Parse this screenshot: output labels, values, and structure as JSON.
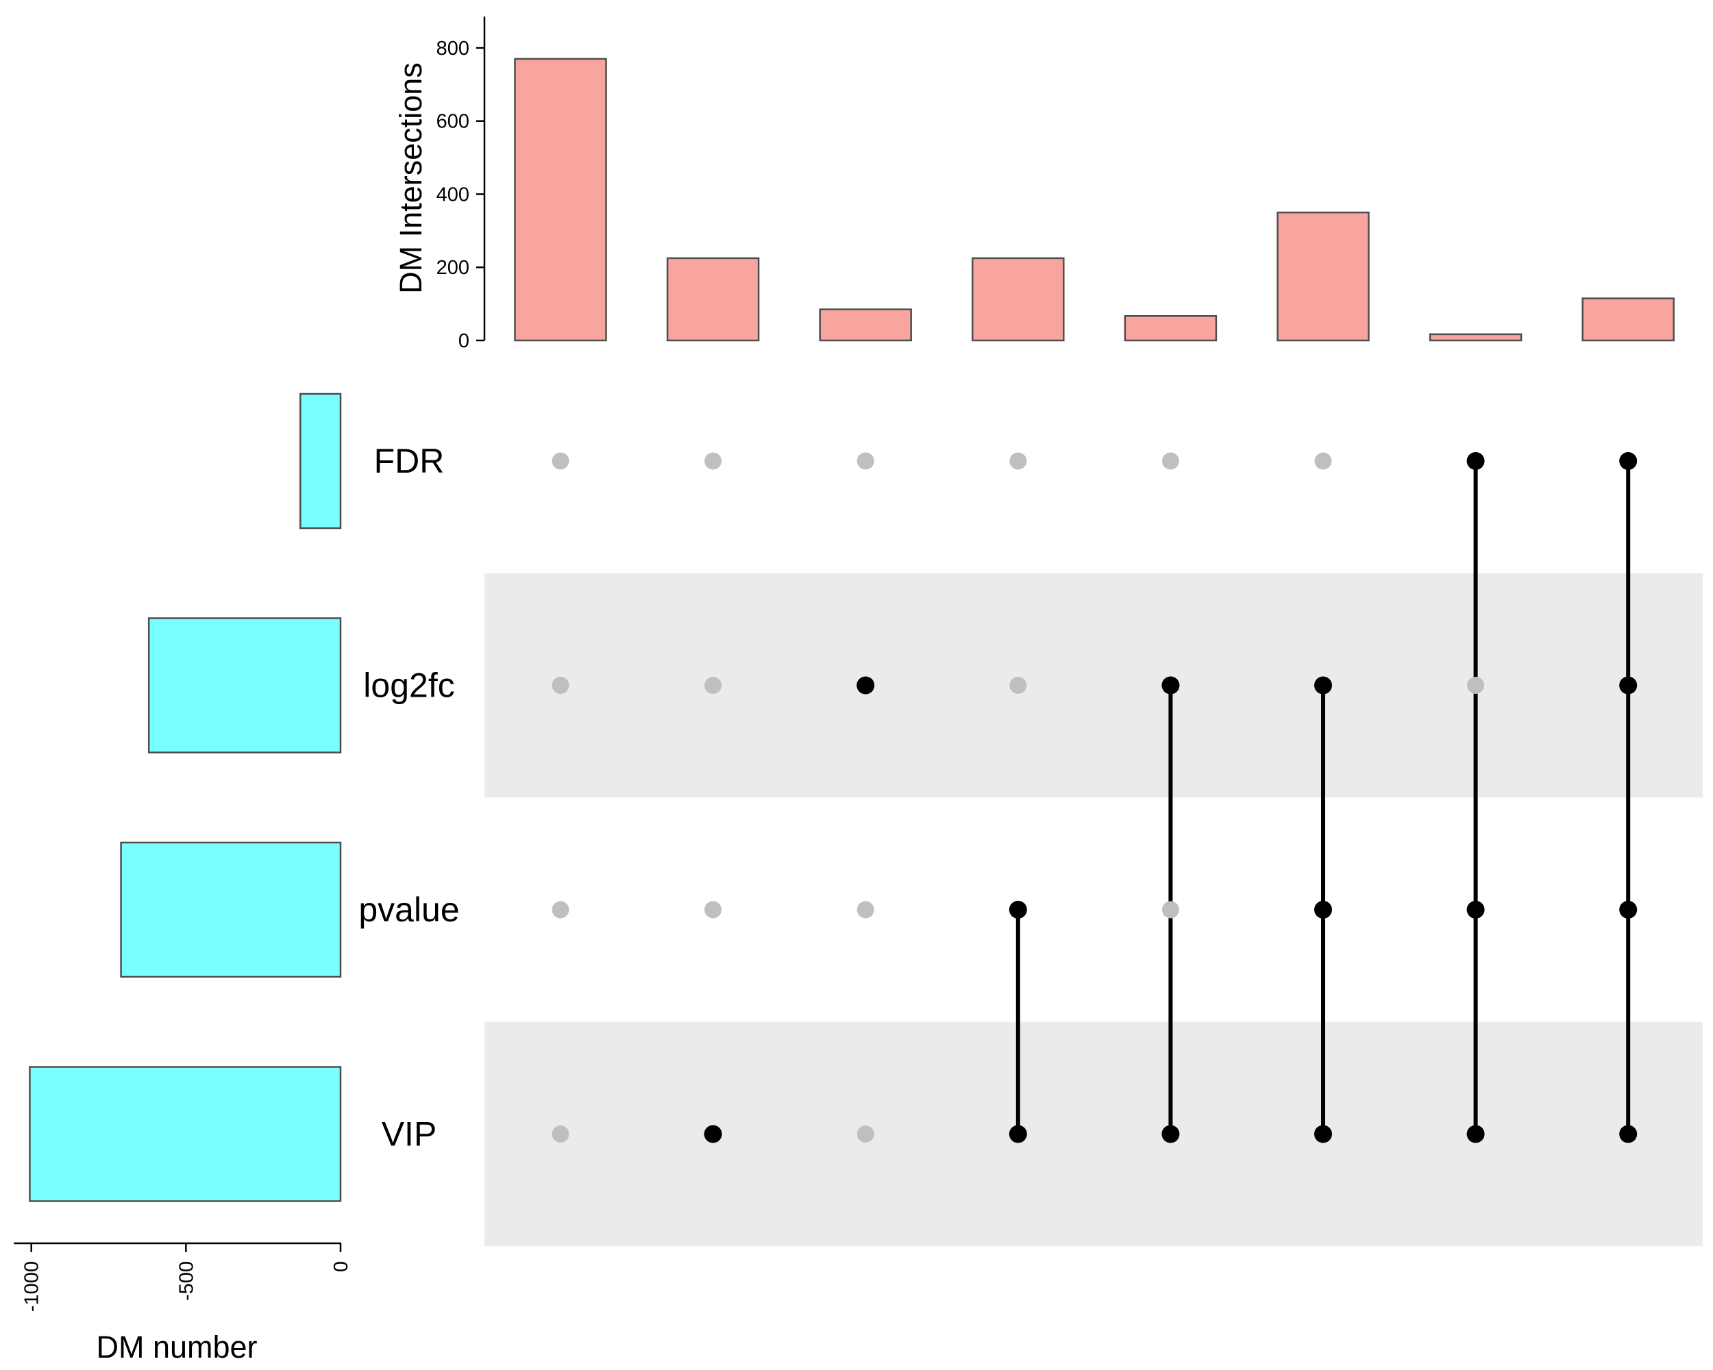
{
  "chart_data": {
    "type": "bar",
    "intersection_chart": {
      "ylabel": "DM Intersections",
      "ylim": [
        0,
        880
      ],
      "yticks": [
        0,
        200,
        400,
        600,
        800
      ],
      "bar_color": "#F8A5A0",
      "bar_outline": "#4D4D4D",
      "values": [
        770,
        225,
        85,
        225,
        67,
        350,
        17,
        115
      ]
    },
    "set_size_chart": {
      "xlabel": "DM number",
      "xlim": [
        -1050,
        0
      ],
      "xticks": [
        -1000,
        -500,
        0
      ],
      "tick_labels": [
        "-1000",
        "-500",
        "0"
      ],
      "bar_color": "#7AFFFF",
      "bar_outline": "#4D4D4D",
      "sets": [
        {
          "name": "FDR",
          "value": -130
        },
        {
          "name": "log2fc",
          "value": -620
        },
        {
          "name": "pvalue",
          "value": -710
        },
        {
          "name": "VIP",
          "value": -1005
        }
      ]
    },
    "matrix": {
      "active_color": "#000000",
      "inactive_color": "#BFBFBF",
      "stripe_color": "#EBEBEB",
      "membership": [
        [
          0,
          0,
          0,
          0,
          0,
          0,
          1,
          1
        ],
        [
          0,
          0,
          1,
          0,
          1,
          1,
          0,
          1
        ],
        [
          0,
          0,
          0,
          1,
          0,
          1,
          1,
          1
        ],
        [
          0,
          1,
          0,
          1,
          1,
          1,
          1,
          1
        ]
      ]
    }
  }
}
